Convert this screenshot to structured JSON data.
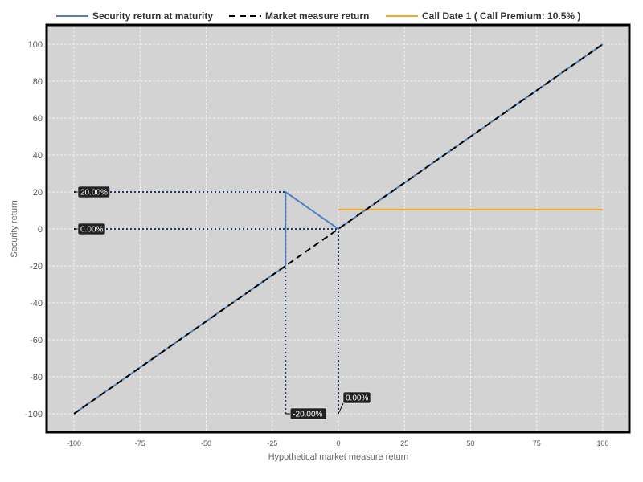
{
  "chart_data": {
    "type": "line",
    "xlabel": "Hypothetical market measure return",
    "ylabel": "Security return",
    "xlim": [
      -105,
      110
    ],
    "ylim": [
      -110,
      110
    ],
    "x_ticks": [
      -100,
      -75,
      -50,
      -25,
      0,
      25,
      50,
      75,
      100
    ],
    "y_ticks": [
      -100,
      -80,
      -60,
      -40,
      -20,
      0,
      20,
      40,
      60,
      80,
      100
    ],
    "grid": true,
    "legend_position": "top",
    "series": [
      {
        "name": "Security return at maturity",
        "color": "#4f81bd",
        "style": "solid",
        "points": [
          [
            -100,
            -100
          ],
          [
            -20,
            -20
          ],
          [
            -20,
            20
          ],
          [
            0,
            0
          ],
          [
            100,
            100
          ]
        ]
      },
      {
        "name": "Market measure return",
        "color": "#000000",
        "style": "dashed",
        "points": [
          [
            -100,
            -100
          ],
          [
            100,
            100
          ]
        ]
      },
      {
        "name": "Call Date 1 ( Call Premium: 10.5% )",
        "color": "#f5a623",
        "style": "solid",
        "points": [
          [
            0,
            10.5
          ],
          [
            100,
            10.5
          ]
        ]
      }
    ],
    "reference_lines": {
      "color": "#1f3864",
      "horizontal": [
        {
          "y": 20,
          "x_from": -100,
          "x_to": -20
        },
        {
          "y": 0,
          "x_from": -100,
          "x_to": 0
        }
      ],
      "vertical": [
        {
          "x": -20,
          "y_from": -100,
          "y_to": 20
        },
        {
          "x": 0,
          "y_from": -100,
          "y_to": 0
        }
      ]
    },
    "annotations": [
      {
        "text": "20.00%",
        "x": -100,
        "y": 20,
        "axis": "y"
      },
      {
        "text": "0.00%",
        "x": -100,
        "y": 0,
        "axis": "y"
      },
      {
        "text": "-20.00%",
        "x": -20,
        "y": -100,
        "axis": "x"
      },
      {
        "text": "0.00%",
        "x": 0,
        "y": -100,
        "axis": "x"
      }
    ]
  }
}
